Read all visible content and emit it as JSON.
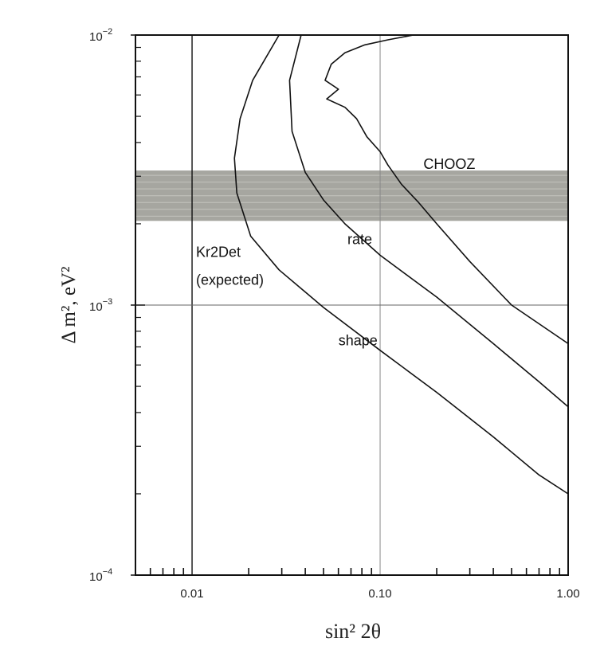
{
  "chart_data": {
    "type": "line",
    "title": "",
    "xlabel": "sin² 2θ",
    "ylabel": "Δ m², eV²",
    "xscale": "log",
    "yscale": "log",
    "xlim": [
      0.005,
      1.0
    ],
    "ylim": [
      0.0001,
      0.01
    ],
    "grid": "lines at x = 0.01, x = 0.10 and y = 1e-3 only",
    "legend": "none",
    "x_ticks": [
      {
        "value": 0.01,
        "label": "0.01"
      },
      {
        "value": 0.1,
        "label": "0.10"
      },
      {
        "value": 1.0,
        "label": "1.00"
      }
    ],
    "y_ticks": [
      {
        "value": 0.01,
        "base": "10",
        "exp": "-2"
      },
      {
        "value": 0.001,
        "base": "10",
        "exp": "-3"
      },
      {
        "value": 0.0001,
        "base": "10",
        "exp": "-4"
      }
    ],
    "band": {
      "y_range": [
        0.00205,
        0.00315
      ],
      "color": "#a6a6a0"
    },
    "series": [
      {
        "name": "shape",
        "color": "#111111",
        "points": [
          [
            0.029,
            0.01
          ],
          [
            0.021,
            0.0068
          ],
          [
            0.018,
            0.0049
          ],
          [
            0.0168,
            0.0035
          ],
          [
            0.0173,
            0.0026
          ],
          [
            0.0205,
            0.0018
          ],
          [
            0.029,
            0.00135
          ],
          [
            0.05,
            0.00098
          ],
          [
            0.1,
            0.00068
          ],
          [
            0.2,
            0.000475
          ],
          [
            0.4,
            0.000325
          ],
          [
            0.7,
            0.000235
          ],
          [
            1.0,
            0.0002
          ]
        ]
      },
      {
        "name": "rate",
        "color": "#111111",
        "points": [
          [
            0.038,
            0.01
          ],
          [
            0.033,
            0.0068
          ],
          [
            0.034,
            0.0044
          ],
          [
            0.04,
            0.0031
          ],
          [
            0.05,
            0.00245
          ],
          [
            0.065,
            0.002
          ],
          [
            0.1,
            0.00153
          ],
          [
            0.2,
            0.00107
          ],
          [
            0.4,
            0.00072
          ],
          [
            0.7,
            0.00052
          ],
          [
            1.0,
            0.00042
          ]
        ]
      },
      {
        "name": "CHOOZ",
        "color": "#111111",
        "points": [
          [
            0.15,
            0.01
          ],
          [
            0.11,
            0.0096
          ],
          [
            0.083,
            0.0092
          ],
          [
            0.065,
            0.0086
          ],
          [
            0.055,
            0.0078
          ],
          [
            0.051,
            0.0068
          ],
          [
            0.06,
            0.0063
          ],
          [
            0.052,
            0.0058
          ],
          [
            0.065,
            0.0054
          ],
          [
            0.075,
            0.0049
          ],
          [
            0.085,
            0.0042
          ],
          [
            0.1,
            0.0037
          ],
          [
            0.11,
            0.0033
          ],
          [
            0.13,
            0.0028
          ],
          [
            0.16,
            0.0024
          ],
          [
            0.2,
            0.002
          ],
          [
            0.3,
            0.00145
          ],
          [
            0.5,
            0.001
          ],
          [
            1.0,
            0.00072
          ]
        ]
      }
    ],
    "annotations": {
      "chooz": {
        "text": "CHOOZ",
        "x": 0.17,
        "y": 0.0032
      },
      "rate": {
        "text": "rate",
        "x": 0.067,
        "y": 0.00168
      },
      "shape": {
        "text": "shape",
        "x": 0.06,
        "y": 0.00071
      },
      "kr2det_line1": {
        "text": "Kr2Det",
        "x": 0.0105,
        "y": 0.00151
      },
      "kr2det_line2": {
        "text": "(expected)",
        "x": 0.0105,
        "y": 0.00119
      }
    }
  }
}
